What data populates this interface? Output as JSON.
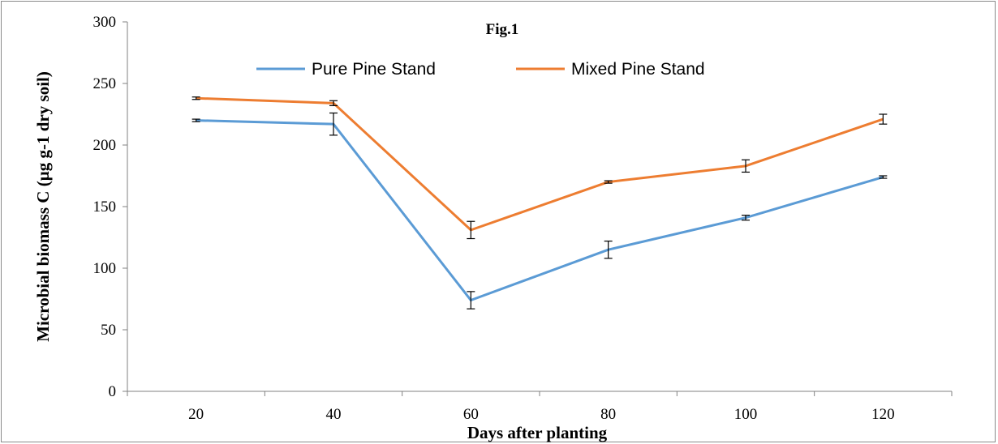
{
  "chart_data": {
    "type": "line",
    "title": "Fig.1",
    "xlabel": "Days after planting",
    "ylabel": "Microbial biomass C (µg g-1 dry soil)",
    "categories": [
      "20",
      "40",
      "60",
      "80",
      "100",
      "120"
    ],
    "y_ticks": [
      "0",
      "50",
      "100",
      "150",
      "200",
      "250",
      "300"
    ],
    "ylim": [
      0,
      300
    ],
    "grid": false,
    "legend_position": "top-center",
    "series": [
      {
        "name": "Pure Pine Stand",
        "color": "#5B9BD5",
        "values": [
          220,
          217,
          74,
          115,
          141,
          174
        ],
        "error": [
          1,
          9,
          7,
          7,
          2,
          1
        ]
      },
      {
        "name": "Mixed Pine Stand",
        "color": "#ED7D31",
        "values": [
          238,
          234,
          131,
          170,
          183,
          221
        ],
        "error": [
          1,
          2,
          7,
          1,
          5,
          4
        ]
      }
    ]
  }
}
